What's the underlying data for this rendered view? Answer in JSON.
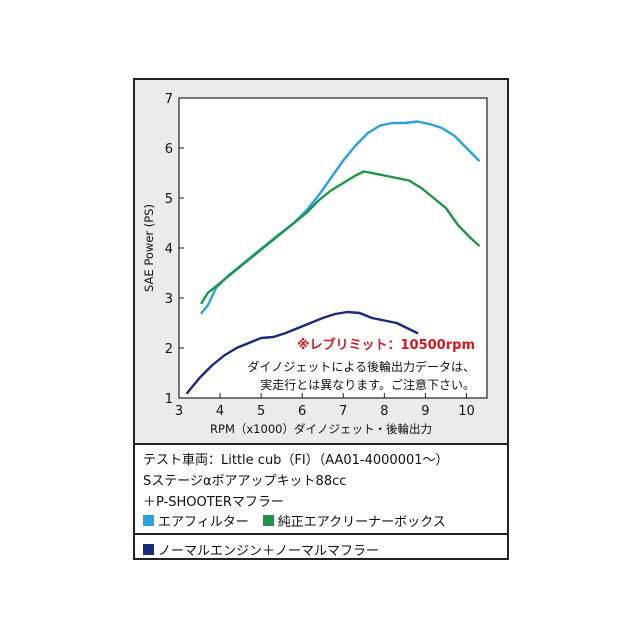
{
  "chart_data": {
    "type": "line",
    "xlabel": "RPM（x1000）ダイノジェット・後輪出力",
    "ylabel": "SAE Power (PS)",
    "xlim": [
      3,
      10.5
    ],
    "ylim": [
      1,
      7
    ],
    "x_ticks": [
      3,
      4,
      5,
      6,
      7,
      8,
      9,
      10
    ],
    "y_ticks": [
      1,
      2,
      3,
      4,
      5,
      6,
      7
    ],
    "grid": false,
    "annotations": {
      "rev_limit": "※レブリミット：10500rpm",
      "note_line1": "ダイノジェットによる後輪出力データは、",
      "note_line2": "実走行とは異なります。ご注意下さい。"
    },
    "series": [
      {
        "name": "エアフィルター",
        "color": "#2aa3dc",
        "points": [
          [
            3.55,
            2.7
          ],
          [
            3.7,
            2.85
          ],
          [
            3.9,
            3.2
          ],
          [
            4.2,
            3.45
          ],
          [
            4.5,
            3.65
          ],
          [
            4.8,
            3.85
          ],
          [
            5.1,
            4.05
          ],
          [
            5.4,
            4.25
          ],
          [
            5.8,
            4.5
          ],
          [
            6.1,
            4.75
          ],
          [
            6.4,
            5.05
          ],
          [
            6.7,
            5.4
          ],
          [
            7.0,
            5.75
          ],
          [
            7.3,
            6.05
          ],
          [
            7.6,
            6.3
          ],
          [
            7.9,
            6.45
          ],
          [
            8.2,
            6.5
          ],
          [
            8.5,
            6.5
          ],
          [
            8.8,
            6.53
          ],
          [
            9.1,
            6.48
          ],
          [
            9.4,
            6.4
          ],
          [
            9.7,
            6.25
          ],
          [
            10.0,
            6.0
          ],
          [
            10.3,
            5.75
          ]
        ]
      },
      {
        "name": "純正エアクリーナーボックス",
        "color": "#1f9447",
        "points": [
          [
            3.55,
            2.9
          ],
          [
            3.7,
            3.1
          ],
          [
            4.0,
            3.3
          ],
          [
            4.3,
            3.5
          ],
          [
            4.6,
            3.7
          ],
          [
            4.9,
            3.9
          ],
          [
            5.2,
            4.1
          ],
          [
            5.5,
            4.3
          ],
          [
            5.8,
            4.5
          ],
          [
            6.1,
            4.7
          ],
          [
            6.4,
            4.95
          ],
          [
            6.7,
            5.15
          ],
          [
            7.0,
            5.3
          ],
          [
            7.3,
            5.45
          ],
          [
            7.5,
            5.53
          ],
          [
            7.7,
            5.5
          ],
          [
            8.0,
            5.45
          ],
          [
            8.3,
            5.4
          ],
          [
            8.6,
            5.35
          ],
          [
            8.9,
            5.2
          ],
          [
            9.2,
            5.0
          ],
          [
            9.5,
            4.8
          ],
          [
            9.8,
            4.45
          ],
          [
            10.1,
            4.2
          ],
          [
            10.3,
            4.05
          ]
        ]
      },
      {
        "name": "ノーマルエンジン＋ノーマルマフラー",
        "color": "#1b2a7a",
        "points": [
          [
            3.2,
            1.1
          ],
          [
            3.5,
            1.4
          ],
          [
            3.8,
            1.65
          ],
          [
            4.1,
            1.85
          ],
          [
            4.4,
            2.0
          ],
          [
            4.7,
            2.1
          ],
          [
            5.0,
            2.2
          ],
          [
            5.3,
            2.22
          ],
          [
            5.6,
            2.3
          ],
          [
            5.9,
            2.4
          ],
          [
            6.2,
            2.5
          ],
          [
            6.5,
            2.6
          ],
          [
            6.8,
            2.68
          ],
          [
            7.1,
            2.72
          ],
          [
            7.4,
            2.7
          ],
          [
            7.7,
            2.6
          ],
          [
            8.0,
            2.55
          ],
          [
            8.3,
            2.5
          ],
          [
            8.5,
            2.42
          ],
          [
            8.8,
            2.3
          ]
        ]
      }
    ]
  },
  "legend_info": {
    "line1": "テスト車両：Little cub（FI）（AA01-4000001～）",
    "line2": "Sステージαボアアップキット88cc",
    "line3": "＋P-SHOOTERマフラー"
  }
}
